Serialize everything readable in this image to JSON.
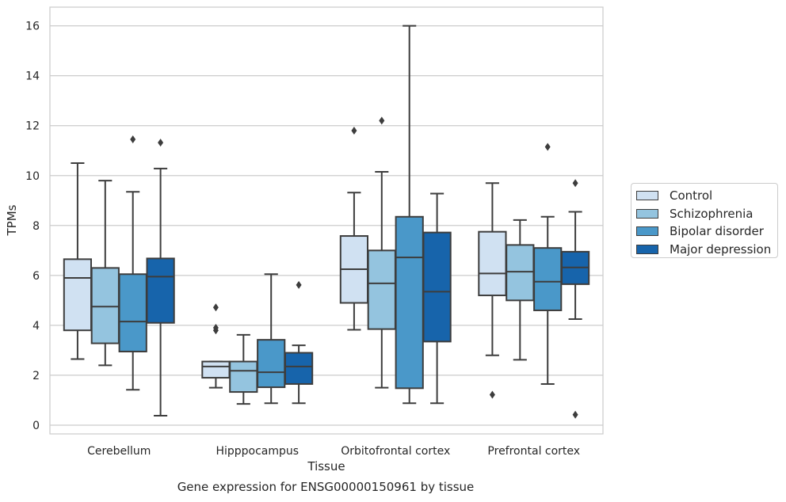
{
  "chart_data": {
    "type": "box",
    "caption": "Gene expression for ENSG00000150961 by tissue",
    "xlabel": "Tissue",
    "ylabel": "TPMs",
    "ylim": [
      -0.35,
      16.75
    ],
    "yticks": [
      0,
      2,
      4,
      6,
      8,
      10,
      12,
      14,
      16
    ],
    "grid": true,
    "legend_placement": "right",
    "categories": [
      "Cerebellum",
      "Hipppocampus",
      "Orbitofrontal cortex",
      "Prefrontal cortex"
    ],
    "series": [
      {
        "name": "Control",
        "color": "#d0e1f2",
        "boxes": [
          {
            "whislo": 2.65,
            "q1": 3.8,
            "med": 5.9,
            "q3": 6.65,
            "whishi": 10.5,
            "fliers": []
          },
          {
            "whislo": 1.5,
            "q1": 1.9,
            "med": 2.35,
            "q3": 2.55,
            "whishi": 2.55,
            "fliers": [
              3.8,
              3.9,
              4.72
            ]
          },
          {
            "whislo": 3.82,
            "q1": 4.9,
            "med": 6.25,
            "q3": 7.58,
            "whishi": 9.32,
            "fliers": [
              11.8
            ]
          },
          {
            "whislo": 2.8,
            "q1": 5.2,
            "med": 6.08,
            "q3": 7.75,
            "whishi": 9.7,
            "fliers": [
              1.22
            ]
          }
        ]
      },
      {
        "name": "Schizophrenia",
        "color": "#94c4df",
        "boxes": [
          {
            "whislo": 2.4,
            "q1": 3.28,
            "med": 4.75,
            "q3": 6.3,
            "whishi": 9.8,
            "fliers": []
          },
          {
            "whislo": 0.85,
            "q1": 1.33,
            "med": 2.18,
            "q3": 2.55,
            "whishi": 3.62,
            "fliers": []
          },
          {
            "whislo": 1.5,
            "q1": 3.85,
            "med": 5.68,
            "q3": 7.0,
            "whishi": 10.15,
            "fliers": [
              12.2
            ]
          },
          {
            "whislo": 2.62,
            "q1": 5.0,
            "med": 6.15,
            "q3": 7.22,
            "whishi": 8.22,
            "fliers": []
          }
        ]
      },
      {
        "name": "Bipolar disorder",
        "color": "#4a98c9",
        "boxes": [
          {
            "whislo": 1.42,
            "q1": 2.95,
            "med": 4.15,
            "q3": 6.05,
            "whishi": 9.35,
            "fliers": [
              11.45
            ]
          },
          {
            "whislo": 0.88,
            "q1": 1.52,
            "med": 2.12,
            "q3": 3.42,
            "whishi": 6.05,
            "fliers": []
          },
          {
            "whislo": 0.88,
            "q1": 1.48,
            "med": 6.72,
            "q3": 8.35,
            "whishi": 16.0,
            "fliers": []
          },
          {
            "whislo": 1.65,
            "q1": 4.6,
            "med": 5.75,
            "q3": 7.1,
            "whishi": 8.35,
            "fliers": [
              11.15
            ]
          }
        ]
      },
      {
        "name": "Major depression",
        "color": "#1764ab",
        "boxes": [
          {
            "whislo": 0.38,
            "q1": 4.1,
            "med": 5.95,
            "q3": 6.68,
            "whishi": 10.28,
            "fliers": [
              11.32
            ]
          },
          {
            "whislo": 0.88,
            "q1": 1.65,
            "med": 2.35,
            "q3": 2.9,
            "whishi": 3.2,
            "fliers": [
              5.62
            ]
          },
          {
            "whislo": 0.88,
            "q1": 3.35,
            "med": 5.35,
            "q3": 7.72,
            "whishi": 9.28,
            "fliers": []
          },
          {
            "whislo": 4.25,
            "q1": 5.65,
            "med": 6.32,
            "q3": 6.95,
            "whishi": 8.55,
            "fliers": [
              0.42,
              9.7
            ]
          }
        ]
      }
    ]
  }
}
